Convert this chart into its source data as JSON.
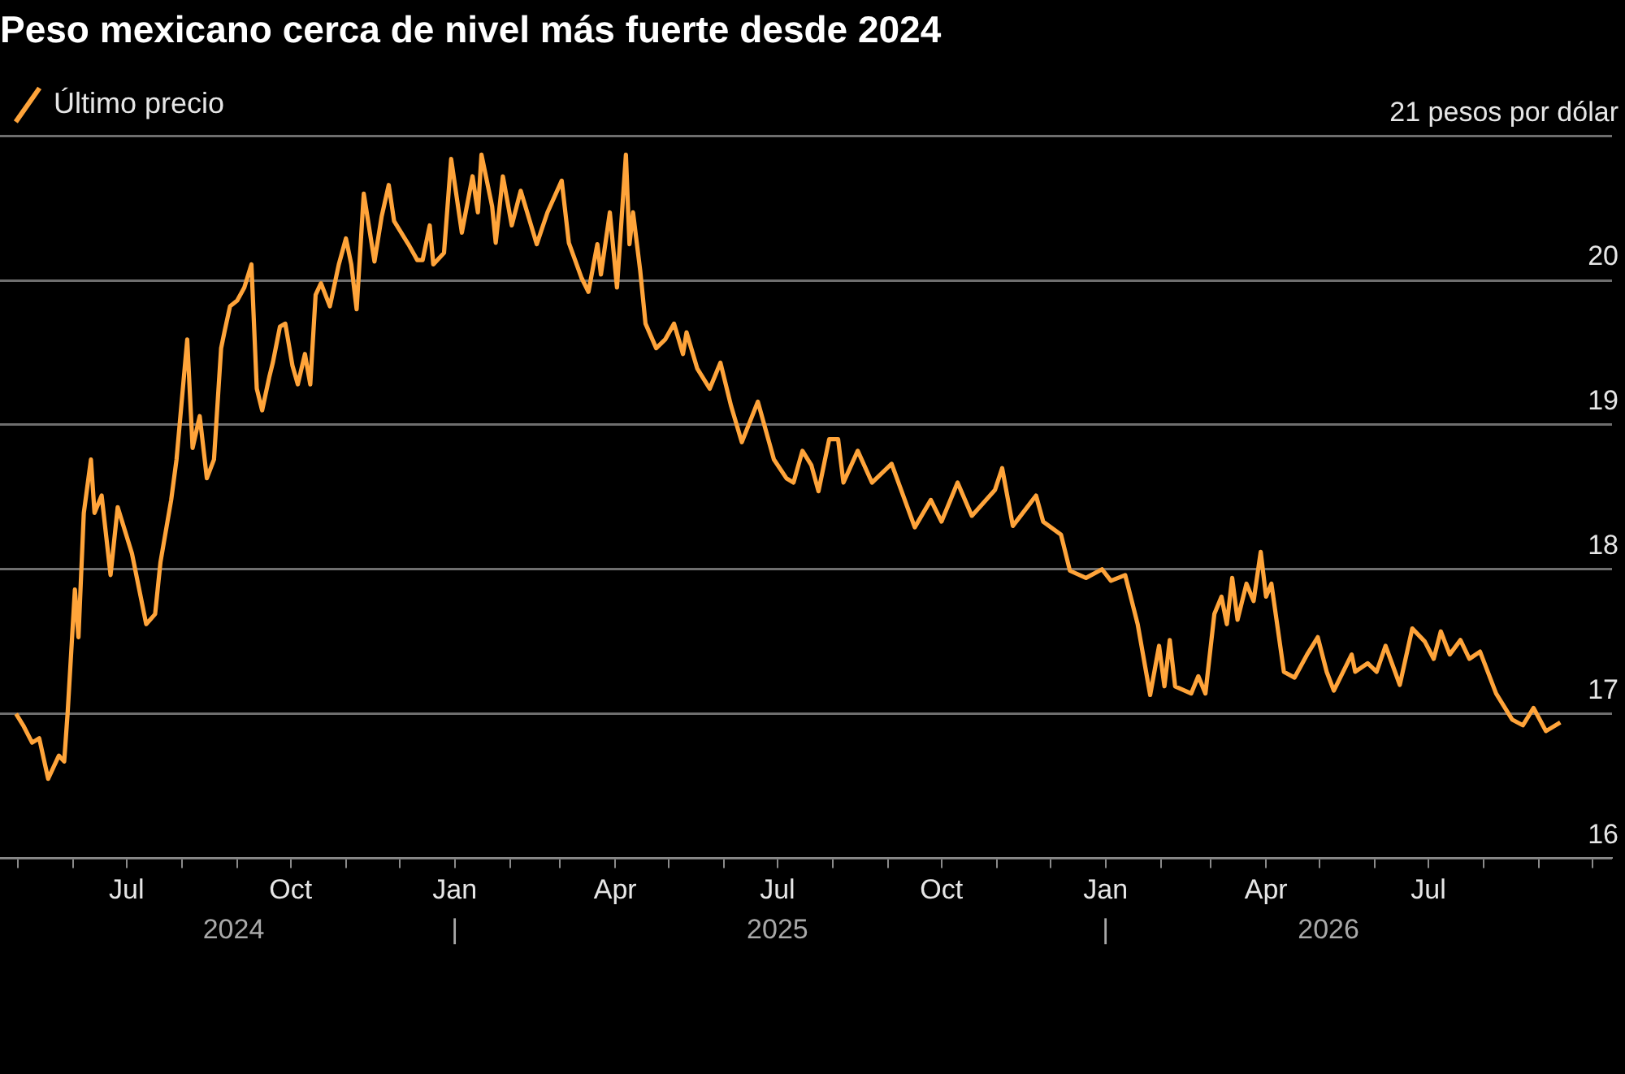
{
  "chart_data": {
    "type": "line",
    "title": "Peso mexicano cerca de nivel más fuerte desde 2024",
    "legend": "top left",
    "grid": "y",
    "marker": "none",
    "xlim": [
      "2024-04-21",
      "2026-10-12"
    ],
    "xticks": [
      {
        "value": "2024-05-01",
        "label": null
      },
      {
        "value": "2024-06-01",
        "label": null
      },
      {
        "value": "2024-07-01",
        "label": "Jul"
      },
      {
        "value": "2024-08-01",
        "label": null
      },
      {
        "value": "2024-09-01",
        "label": null
      },
      {
        "value": "2024-10-01",
        "label": "Oct"
      },
      {
        "value": "2024-11-01",
        "label": null
      },
      {
        "value": "2024-12-01",
        "label": null
      },
      {
        "value": "2025-01-01",
        "label": "Jan"
      },
      {
        "value": "2025-02-01",
        "label": null
      },
      {
        "value": "2025-03-01",
        "label": null
      },
      {
        "value": "2025-04-01",
        "label": "Apr"
      },
      {
        "value": "2025-05-01",
        "label": null
      },
      {
        "value": "2025-06-01",
        "label": null
      },
      {
        "value": "2025-07-01",
        "label": "Jul"
      },
      {
        "value": "2025-08-01",
        "label": null
      },
      {
        "value": "2025-09-01",
        "label": null
      },
      {
        "value": "2025-10-01",
        "label": "Oct"
      },
      {
        "value": "2025-11-01",
        "label": null
      },
      {
        "value": "2025-12-01",
        "label": null
      },
      {
        "value": "2026-01-01",
        "label": "Jan"
      },
      {
        "value": "2026-02-01",
        "label": null
      },
      {
        "value": "2026-03-01",
        "label": null
      },
      {
        "value": "2026-04-01",
        "label": "Apr"
      },
      {
        "value": "2026-05-01",
        "label": null
      },
      {
        "value": "2026-06-01",
        "label": null
      },
      {
        "value": "2026-07-01",
        "label": "Jul"
      },
      {
        "value": "2026-08-01",
        "label": null
      },
      {
        "value": "2026-09-01",
        "label": null
      },
      {
        "value": "2026-10-01",
        "label": null
      }
    ],
    "x2lim": [
      "2024-04-21",
      "2026-10-12"
    ],
    "x2ticks": [
      {
        "value": "2024-08-30",
        "label": "2024"
      },
      {
        "value": "2025-01-01",
        "label": "|"
      },
      {
        "value": "2025-07-01",
        "label": "2025"
      },
      {
        "value": "2026-01-01",
        "label": "|"
      },
      {
        "value": "2026-05-06",
        "label": "2026"
      }
    ],
    "ylim": [
      16,
      21
    ],
    "yticks": [
      16,
      17,
      18,
      19,
      20,
      {
        "value": 21,
        "label": "21 pesos por dólar"
      }
    ],
    "x": [
      "2024-04-30",
      "2024-05-04",
      "2024-05-09",
      "2024-05-13",
      "2024-05-18",
      "2024-05-24",
      "2024-05-27",
      "2024-05-29",
      "2024-06-02",
      "2024-06-04",
      "2024-06-07",
      "2024-06-11",
      "2024-06-13",
      "2024-06-17",
      "2024-06-22",
      "2024-06-26",
      "2024-07-04",
      "2024-07-12",
      "2024-07-17",
      "2024-07-20",
      "2024-07-26",
      "2024-07-29",
      "2024-08-04",
      "2024-08-07",
      "2024-08-11",
      "2024-08-15",
      "2024-08-19",
      "2024-08-23",
      "2024-08-25",
      "2024-08-28",
      "2024-09-01",
      "2024-09-05",
      "2024-09-09",
      "2024-09-12",
      "2024-09-15",
      "2024-09-19",
      "2024-09-21",
      "2024-09-25",
      "2024-09-28",
      "2024-10-02",
      "2024-10-05",
      "2024-10-09",
      "2024-10-12",
      "2024-10-15",
      "2024-10-18",
      "2024-10-23",
      "2024-10-28",
      "2024-11-01",
      "2024-11-04",
      "2024-11-07",
      "2024-11-11",
      "2024-11-17",
      "2024-11-21",
      "2024-11-25",
      "2024-11-28",
      "2024-12-06",
      "2024-12-11",
      "2024-12-14",
      "2024-12-18",
      "2024-12-20",
      "2024-12-26",
      "2024-12-30",
      "2025-01-05",
      "2025-01-11",
      "2025-01-14",
      "2025-01-16",
      "2025-01-22",
      "2025-01-24",
      "2025-01-28",
      "2025-02-02",
      "2025-02-07",
      "2025-02-16",
      "2025-02-22",
      "2025-03-02",
      "2025-03-06",
      "2025-03-13",
      "2025-03-17",
      "2025-03-22",
      "2025-03-24",
      "2025-03-29",
      "2025-04-02",
      "2025-04-07",
      "2025-04-09",
      "2025-04-11",
      "2025-04-15",
      "2025-04-18",
      "2025-04-24",
      "2025-04-29",
      "2025-05-04",
      "2025-05-09",
      "2025-05-11",
      "2025-05-17",
      "2025-05-24",
      "2025-05-30",
      "2025-06-05",
      "2025-06-11",
      "2025-06-20",
      "2025-06-29",
      "2025-07-06",
      "2025-07-10",
      "2025-07-15",
      "2025-07-20",
      "2025-07-24",
      "2025-07-30",
      "2025-08-04",
      "2025-08-07",
      "2025-08-15",
      "2025-08-23",
      "2025-09-03",
      "2025-09-16",
      "2025-09-25",
      "2025-10-01",
      "2025-10-10",
      "2025-10-18",
      "2025-10-31",
      "2025-11-04",
      "2025-11-10",
      "2025-11-23",
      "2025-11-27",
      "2025-12-07",
      "2025-12-12",
      "2025-12-21",
      "2025-12-30",
      "2026-01-04",
      "2026-01-12",
      "2026-01-19",
      "2026-01-26",
      "2026-01-31",
      "2026-02-03",
      "2026-02-06",
      "2026-02-09",
      "2026-02-18",
      "2026-02-22",
      "2026-02-26",
      "2026-03-03",
      "2026-03-07",
      "2026-03-10",
      "2026-03-13",
      "2026-03-16",
      "2026-03-21",
      "2026-03-25",
      "2026-03-29",
      "2026-04-01",
      "2026-04-04",
      "2026-04-11",
      "2026-04-17",
      "2026-04-24",
      "2026-04-30",
      "2026-05-05",
      "2026-05-09",
      "2026-05-19",
      "2026-05-21",
      "2026-05-28",
      "2026-06-02",
      "2026-06-07",
      "2026-06-15",
      "2026-06-22",
      "2026-06-29",
      "2026-07-04",
      "2026-07-08",
      "2026-07-13",
      "2026-07-19",
      "2026-07-24",
      "2026-07-30",
      "2026-08-08",
      "2026-08-17",
      "2026-08-23",
      "2026-08-29",
      "2026-09-05",
      "2026-09-13"
    ],
    "series": [
      {
        "name": "Último precio",
        "color": "#ffa43a",
        "values": [
          17.0,
          16.92,
          16.8,
          16.83,
          16.55,
          16.71,
          16.67,
          17.02,
          17.86,
          17.53,
          18.39,
          18.76,
          18.39,
          18.51,
          17.96,
          18.43,
          18.11,
          17.62,
          17.69,
          18.05,
          18.48,
          18.76,
          19.59,
          18.84,
          19.06,
          18.63,
          18.76,
          19.53,
          19.65,
          19.82,
          19.86,
          19.95,
          20.11,
          19.25,
          19.1,
          19.33,
          19.43,
          19.68,
          19.7,
          19.41,
          19.28,
          19.49,
          19.28,
          19.9,
          19.98,
          19.82,
          20.11,
          20.29,
          20.11,
          19.8,
          20.6,
          20.13,
          20.44,
          20.66,
          20.41,
          20.25,
          20.14,
          20.14,
          20.38,
          20.11,
          20.19,
          20.84,
          20.33,
          20.72,
          20.47,
          20.87,
          20.51,
          20.26,
          20.72,
          20.38,
          20.62,
          20.25,
          20.47,
          20.69,
          20.26,
          20.02,
          19.92,
          20.25,
          20.04,
          20.47,
          19.95,
          20.87,
          20.25,
          20.47,
          20.07,
          19.7,
          19.53,
          19.59,
          19.7,
          19.49,
          19.64,
          19.39,
          19.25,
          19.43,
          19.13,
          18.88,
          19.16,
          18.76,
          18.63,
          18.6,
          18.82,
          18.72,
          18.54,
          18.9,
          18.9,
          18.6,
          18.82,
          18.6,
          18.73,
          18.29,
          18.48,
          18.33,
          18.6,
          18.37,
          18.55,
          18.7,
          18.3,
          18.51,
          18.33,
          18.24,
          17.99,
          17.94,
          18.0,
          17.92,
          17.96,
          17.62,
          17.13,
          17.47,
          17.19,
          17.51,
          17.19,
          17.14,
          17.26,
          17.14,
          17.69,
          17.81,
          17.62,
          17.94,
          17.65,
          17.9,
          17.78,
          18.12,
          17.81,
          17.9,
          17.29,
          17.25,
          17.41,
          17.53,
          17.29,
          17.16,
          17.41,
          17.29,
          17.35,
          17.29,
          17.47,
          17.2,
          17.59,
          17.5,
          17.38,
          17.57,
          17.41,
          17.51,
          17.38,
          17.43,
          17.14,
          16.96,
          16.92,
          17.04,
          16.88,
          16.94
        ]
      }
    ]
  }
}
